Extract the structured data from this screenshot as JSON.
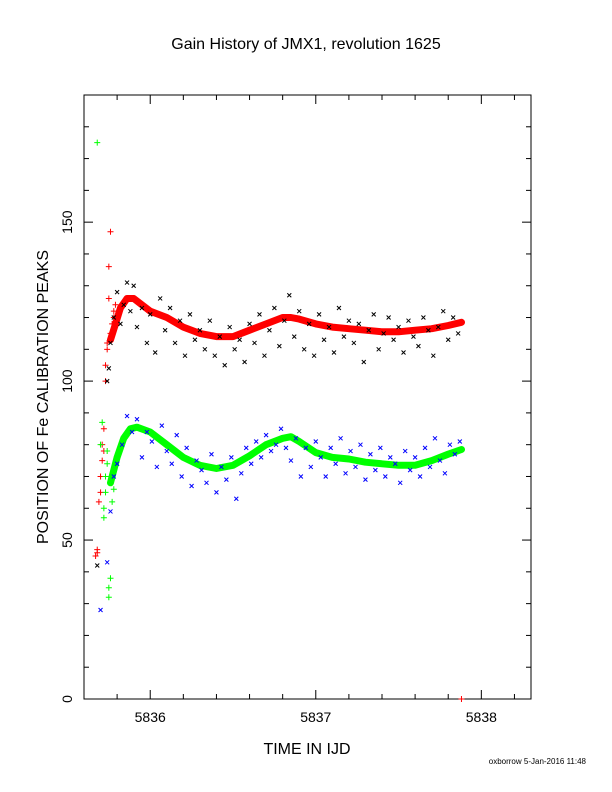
{
  "chart_data": {
    "type": "scatter",
    "title": "Gain History of JMX1, revolution 1625",
    "xlabel": "TIME IN IJD",
    "ylabel": "POSITION OF Fe CALIBRATION PEAKS",
    "xlim": [
      5835.6,
      5838.3
    ],
    "ylim": [
      0,
      190
    ],
    "x_ticks": [
      5836,
      5837,
      5838
    ],
    "y_ticks": [
      0,
      50,
      100,
      150
    ],
    "grid": false,
    "legend": "none",
    "series": [
      {
        "marker": "line",
        "color": "#ff0000",
        "x": [
          5835.76,
          5835.79,
          5835.82,
          5835.86,
          5835.9,
          5836.0,
          5836.1,
          5836.2,
          5836.3,
          5836.4,
          5836.5,
          5836.6,
          5836.7,
          5836.8,
          5836.85,
          5836.9,
          5837.0,
          5837.1,
          5837.2,
          5837.3,
          5837.4,
          5837.5,
          5837.6,
          5837.7,
          5837.8,
          5837.88
        ],
        "y": [
          113,
          118,
          123,
          126,
          126,
          122,
          120,
          117,
          115,
          114,
          114,
          116,
          118,
          120,
          120,
          119.5,
          118,
          117,
          116.5,
          116,
          115.5,
          115.5,
          116,
          116.5,
          117.5,
          118.5
        ]
      },
      {
        "marker": "line",
        "color": "#00ff00",
        "x": [
          5835.76,
          5835.8,
          5835.84,
          5835.88,
          5835.92,
          5836.0,
          5836.1,
          5836.2,
          5836.3,
          5836.4,
          5836.5,
          5836.6,
          5836.7,
          5836.8,
          5836.85,
          5836.9,
          5837.0,
          5837.1,
          5837.2,
          5837.3,
          5837.4,
          5837.5,
          5837.6,
          5837.7,
          5837.8,
          5837.88
        ],
        "y": [
          68,
          76,
          82,
          85,
          85.5,
          84,
          80,
          76,
          73.5,
          72.5,
          73.5,
          76.5,
          80,
          82,
          82.5,
          81,
          77.5,
          76,
          75.5,
          74.5,
          74,
          73.5,
          73.5,
          75,
          77,
          78.5
        ]
      },
      {
        "marker": "+",
        "color": "#ff0000",
        "x": [
          5835.67,
          5835.68,
          5835.68,
          5835.69,
          5835.7,
          5835.7,
          5835.71,
          5835.71,
          5835.72,
          5835.72,
          5835.73,
          5835.73,
          5835.74,
          5835.74,
          5835.75,
          5835.75,
          5835.76,
          5835.76,
          5835.77,
          5835.78,
          5835.78,
          5835.79,
          5837.88
        ],
        "y": [
          45,
          46,
          47,
          62,
          65,
          70,
          75,
          80,
          85,
          78,
          100,
          105,
          110,
          112,
          126,
          136,
          147,
          115,
          118,
          120,
          122,
          124,
          0
        ]
      },
      {
        "marker": "+",
        "color": "#00ff00",
        "x": [
          5835.68,
          5835.7,
          5835.71,
          5835.72,
          5835.72,
          5835.73,
          5835.73,
          5835.74,
          5835.74,
          5835.75,
          5835.75,
          5835.76,
          5835.77,
          5835.78
        ],
        "y": [
          175,
          80,
          87,
          57,
          60,
          65,
          70,
          74,
          78,
          32,
          35,
          38,
          62,
          66
        ]
      },
      {
        "marker": "x",
        "color": "#000000",
        "x": [
          5835.68,
          5835.74,
          5835.75,
          5835.76,
          5835.78,
          5835.8,
          5835.82,
          5835.84,
          5835.86,
          5835.88,
          5835.9,
          5835.92,
          5835.95,
          5835.98,
          5836.0,
          5836.03,
          5836.06,
          5836.09,
          5836.12,
          5836.15,
          5836.18,
          5836.21,
          5836.24,
          5836.27,
          5836.3,
          5836.33,
          5836.36,
          5836.39,
          5836.42,
          5836.45,
          5836.48,
          5836.51,
          5836.54,
          5836.57,
          5836.6,
          5836.63,
          5836.66,
          5836.69,
          5836.72,
          5836.75,
          5836.78,
          5836.81,
          5836.84,
          5836.87,
          5836.9,
          5836.93,
          5836.96,
          5836.99,
          5837.02,
          5837.05,
          5837.08,
          5837.11,
          5837.14,
          5837.17,
          5837.2,
          5837.23,
          5837.26,
          5837.29,
          5837.32,
          5837.35,
          5837.38,
          5837.41,
          5837.44,
          5837.47,
          5837.5,
          5837.53,
          5837.56,
          5837.59,
          5837.62,
          5837.65,
          5837.68,
          5837.71,
          5837.74,
          5837.77,
          5837.8,
          5837.83,
          5837.86
        ],
        "y": [
          42,
          100,
          104,
          112,
          120,
          128,
          118,
          124,
          131,
          122,
          130,
          117,
          123,
          112,
          121,
          109,
          126,
          116,
          123,
          112,
          119,
          108,
          121,
          113,
          116,
          110,
          119,
          108,
          114,
          105,
          117,
          110,
          113,
          106,
          118,
          112,
          121,
          108,
          116,
          123,
          111,
          119,
          127,
          114,
          122,
          110,
          118,
          108,
          121,
          113,
          117,
          109,
          123,
          114,
          119,
          112,
          118,
          106,
          116,
          121,
          110,
          115,
          120,
          113,
          117,
          109,
          119,
          114,
          111,
          120,
          116,
          108,
          117,
          122,
          113,
          120,
          115
        ]
      },
      {
        "marker": "x",
        "color": "#0000ff",
        "x": [
          5835.7,
          5835.74,
          5835.76,
          5835.78,
          5835.8,
          5835.83,
          5835.86,
          5835.89,
          5835.92,
          5835.95,
          5835.98,
          5836.01,
          5836.04,
          5836.07,
          5836.1,
          5836.13,
          5836.16,
          5836.19,
          5836.22,
          5836.25,
          5836.28,
          5836.31,
          5836.34,
          5836.37,
          5836.4,
          5836.43,
          5836.46,
          5836.49,
          5836.52,
          5836.55,
          5836.58,
          5836.61,
          5836.64,
          5836.67,
          5836.7,
          5836.73,
          5836.76,
          5836.79,
          5836.82,
          5836.85,
          5836.88,
          5836.91,
          5836.94,
          5836.97,
          5837.0,
          5837.03,
          5837.06,
          5837.09,
          5837.12,
          5837.15,
          5837.18,
          5837.21,
          5837.24,
          5837.27,
          5837.3,
          5837.33,
          5837.36,
          5837.39,
          5837.42,
          5837.45,
          5837.48,
          5837.51,
          5837.54,
          5837.57,
          5837.6,
          5837.63,
          5837.66,
          5837.69,
          5837.72,
          5837.75,
          5837.78,
          5837.81,
          5837.84,
          5837.87
        ],
        "y": [
          28,
          43,
          59,
          70,
          74,
          80,
          89,
          84,
          88,
          76,
          84,
          81,
          73,
          86,
          78,
          74,
          83,
          70,
          79,
          67,
          75,
          72,
          68,
          77,
          65,
          73,
          69,
          76,
          63,
          71,
          79,
          74,
          81,
          76,
          83,
          78,
          80,
          85,
          79,
          75,
          82,
          70,
          79,
          73,
          81,
          76,
          70,
          79,
          74,
          82,
          71,
          78,
          73,
          80,
          69,
          77,
          72,
          79,
          70,
          76,
          74,
          68,
          78,
          72,
          76,
          70,
          79,
          73,
          82,
          75,
          71,
          80,
          77,
          81
        ]
      }
    ]
  },
  "footer": "oxborrow  5-Jan-2016 11:48"
}
